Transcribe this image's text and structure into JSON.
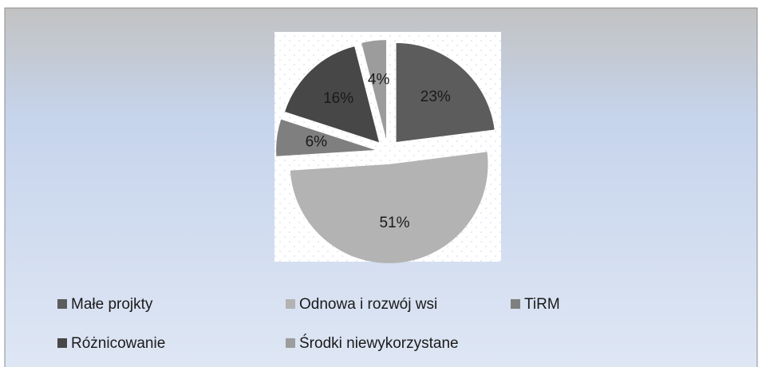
{
  "chart_data": {
    "type": "pie",
    "categories": [
      "Małe projkty",
      "Odnowa i rozwój wsi",
      "TiRM",
      "Różnicowanie",
      "Środki niewykorzystane"
    ],
    "values": [
      23,
      51,
      6,
      16,
      4
    ],
    "value_labels": [
      "23%",
      "51%",
      "6%",
      "16%",
      "4%"
    ],
    "colors": [
      "#5c5c5c",
      "#b3b3b3",
      "#7f7f7f",
      "#474747",
      "#9c9c9c"
    ],
    "legend": "bottom"
  }
}
